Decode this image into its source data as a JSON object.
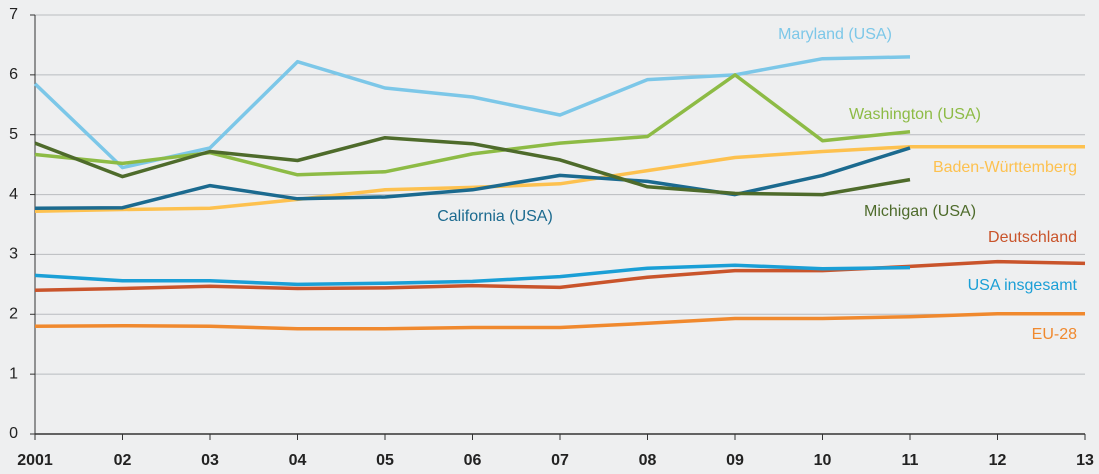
{
  "chart_data": {
    "type": "line",
    "categories": [
      "2001",
      "02",
      "03",
      "04",
      "05",
      "06",
      "07",
      "08",
      "09",
      "10",
      "11",
      "12",
      "13"
    ],
    "ylim": [
      0,
      7
    ],
    "yticks": [
      0,
      1,
      2,
      3,
      4,
      5,
      6,
      7
    ],
    "grid": true,
    "series": [
      {
        "name": "Maryland (USA)",
        "color": "#7cc7e8",
        "values": [
          5.85,
          4.45,
          4.78,
          6.22,
          5.78,
          5.63,
          5.33,
          5.92,
          6.0,
          6.27,
          6.3,
          null,
          null
        ]
      },
      {
        "name": "Washington (USA)",
        "color": "#8dbb45",
        "values": [
          4.67,
          4.52,
          4.7,
          4.33,
          4.38,
          4.68,
          4.86,
          4.97,
          6.0,
          4.9,
          5.05,
          null,
          null
        ]
      },
      {
        "name": "Baden-Württemberg",
        "color": "#fdc14f",
        "values": [
          3.72,
          3.75,
          3.77,
          3.92,
          4.08,
          4.12,
          4.18,
          4.4,
          4.62,
          4.72,
          4.8,
          4.8,
          4.8
        ]
      },
      {
        "name": "California (USA)",
        "color": "#1b6a8f",
        "values": [
          3.77,
          3.78,
          4.15,
          3.93,
          3.96,
          4.08,
          4.32,
          4.22,
          4.0,
          4.32,
          4.78,
          null,
          null
        ]
      },
      {
        "name": "Michigan (USA)",
        "color": "#4e6b2b",
        "values": [
          4.86,
          4.3,
          4.72,
          4.57,
          4.95,
          4.85,
          4.58,
          4.13,
          4.02,
          4.0,
          4.25,
          null,
          null
        ]
      },
      {
        "name": "Deutschland",
        "color": "#c9542b",
        "values": [
          2.4,
          2.43,
          2.47,
          2.43,
          2.44,
          2.48,
          2.45,
          2.62,
          2.73,
          2.73,
          2.8,
          2.88,
          2.85
        ]
      },
      {
        "name": "USA insgesamt",
        "color": "#1a9fd6",
        "values": [
          2.65,
          2.56,
          2.56,
          2.5,
          2.52,
          2.55,
          2.63,
          2.77,
          2.82,
          2.76,
          2.78,
          null,
          null
        ]
      },
      {
        "name": "EU-28",
        "color": "#f0892e",
        "values": [
          1.8,
          1.81,
          1.8,
          1.76,
          1.76,
          1.78,
          1.78,
          1.85,
          1.93,
          1.93,
          1.96,
          2.01,
          2.01
        ]
      }
    ]
  }
}
